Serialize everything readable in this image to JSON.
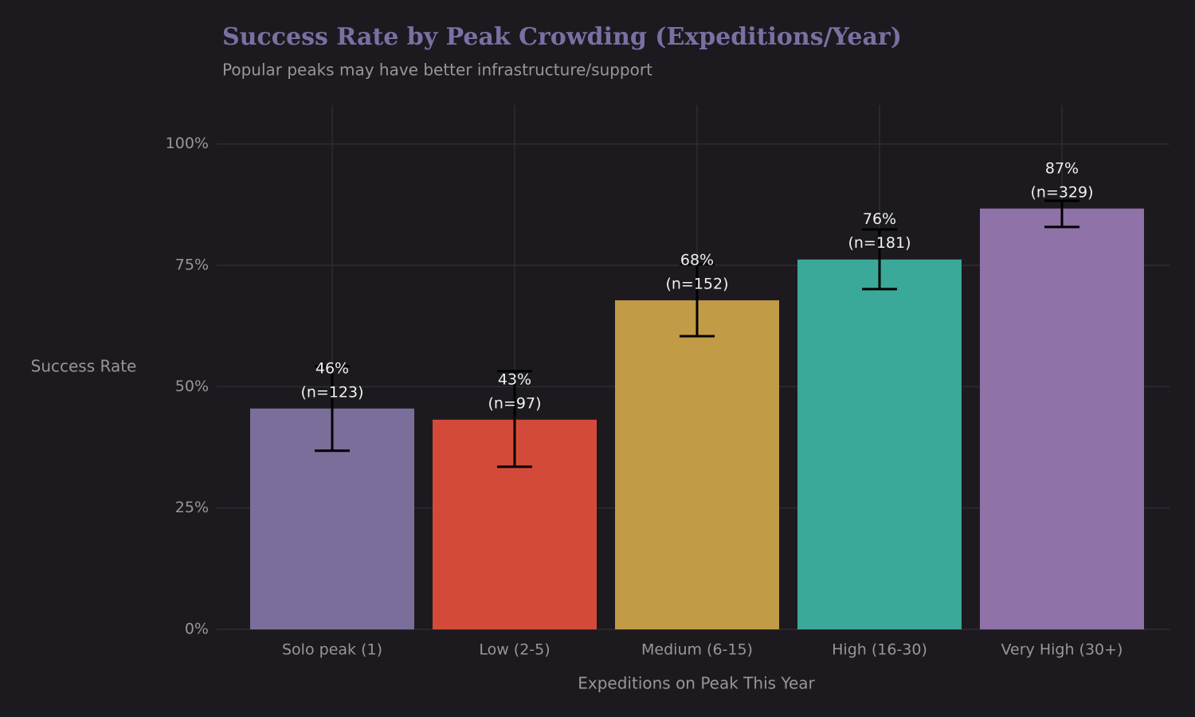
{
  "chart_data": {
    "type": "bar",
    "title": "Success Rate by Peak Crowding (Expeditions/Year)",
    "subtitle": "Popular peaks may have better infrastructure/support",
    "x_label": "Expeditions on Peak This Year",
    "y_label": "Success Rate",
    "categories": [
      "Solo peak (1)",
      "Low (2-5)",
      "Medium (6-15)",
      "High (16-30)",
      "Very High (30+)"
    ],
    "values": [
      45.5,
      43.2,
      67.8,
      76.2,
      86.7
    ],
    "value_labels": [
      "46%",
      "43%",
      "68%",
      "76%",
      "87%"
    ],
    "n_labels": [
      "(n=123)",
      "(n=97)",
      "(n=152)",
      "(n=181)",
      "(n=329)"
    ],
    "ci_lower": [
      36.8,
      33.5,
      60.4,
      70.1,
      82.9
    ],
    "ci_upper": [
      54.2,
      53.2,
      75.2,
      82.4,
      88.3
    ],
    "colors": [
      "#7b6e9a",
      "#d44a3a",
      "#c19b45",
      "#3aa99a",
      "#8e72a8"
    ],
    "ylim": [
      0,
      108
    ],
    "yticks": [
      {
        "value": 0,
        "label": "0%"
      },
      {
        "value": 25,
        "label": "25%"
      },
      {
        "value": 50,
        "label": "50%"
      },
      {
        "value": 75,
        "label": "75%"
      },
      {
        "value": 100,
        "label": "100%"
      }
    ],
    "grid": true
  }
}
